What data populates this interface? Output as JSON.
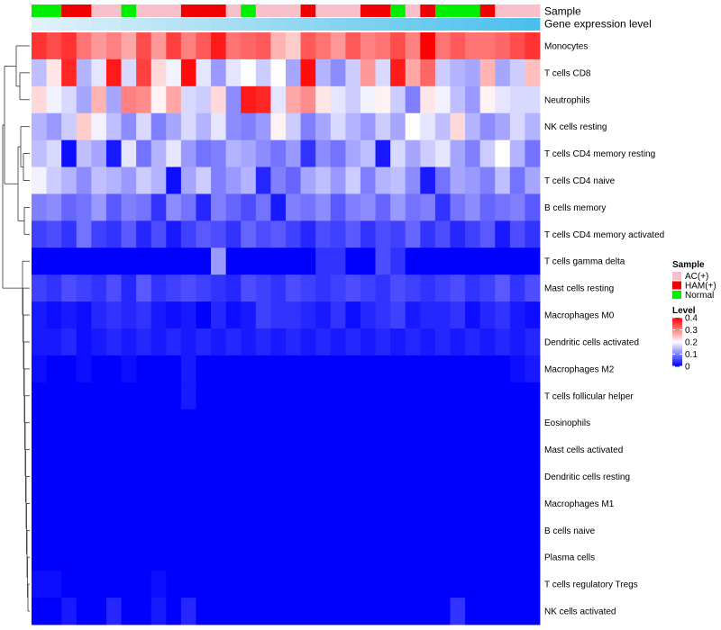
{
  "chart_data": {
    "type": "heatmap",
    "title": "",
    "xlabel": "",
    "ylabel": "",
    "column_annotation_labels": [
      "Sample",
      "Gene expression level"
    ],
    "sample_groups": [
      "AC(+)",
      "HAM(+)",
      "Normal"
    ],
    "sample_colors": {
      "AC(+)": "#f7c0cb",
      "HAM(+)": "#f00000",
      "Normal": "#00ee00"
    },
    "samples": [
      "Normal",
      "Normal",
      "HAM(+)",
      "HAM(+)",
      "AC(+)",
      "AC(+)",
      "Normal",
      "AC(+)",
      "AC(+)",
      "AC(+)",
      "HAM(+)",
      "HAM(+)",
      "HAM(+)",
      "AC(+)",
      "Normal",
      "AC(+)",
      "AC(+)",
      "AC(+)",
      "HAM(+)",
      "AC(+)",
      "AC(+)",
      "AC(+)",
      "HAM(+)",
      "HAM(+)",
      "Normal",
      "AC(+)",
      "HAM(+)",
      "Normal",
      "Normal",
      "Normal",
      "HAM(+)",
      "AC(+)",
      "AC(+)",
      "AC(+)"
    ],
    "gene_expression_bar": {
      "low_color": "#dff1f9",
      "high_color": "#4bc0ec"
    },
    "value_range": [
      0,
      0.4
    ],
    "color_scale": {
      "low": "#0000ff",
      "mid": "#ffffff",
      "high": "#ff0000",
      "midpoint": 0.2
    },
    "rows": [
      {
        "name": "Monocytes",
        "values": [
          0.36,
          0.34,
          0.36,
          0.31,
          0.28,
          0.3,
          0.27,
          0.34,
          0.28,
          0.35,
          0.3,
          0.33,
          0.38,
          0.31,
          0.32,
          0.33,
          0.26,
          0.24,
          0.33,
          0.31,
          0.28,
          0.33,
          0.3,
          0.31,
          0.34,
          0.3,
          0.4,
          0.31,
          0.33,
          0.31,
          0.31,
          0.32,
          0.34,
          0.36
        ]
      },
      {
        "name": "T cells CD8",
        "values": [
          0.15,
          0.22,
          0.37,
          0.14,
          0.18,
          0.38,
          0.17,
          0.35,
          0.23,
          0.19,
          0.39,
          0.18,
          0.12,
          0.18,
          0.2,
          0.16,
          0.2,
          0.13,
          0.39,
          0.14,
          0.11,
          0.16,
          0.28,
          0.17,
          0.38,
          0.27,
          0.32,
          0.16,
          0.14,
          0.13,
          0.26,
          0.13,
          0.16,
          0.25
        ]
      },
      {
        "name": "Neutrophils",
        "values": [
          0.23,
          0.19,
          0.17,
          0.13,
          0.26,
          0.13,
          0.3,
          0.29,
          0.21,
          0.27,
          0.17,
          0.16,
          0.23,
          0.11,
          0.38,
          0.37,
          0.18,
          0.27,
          0.29,
          0.22,
          0.18,
          0.16,
          0.19,
          0.21,
          0.16,
          0.1,
          0.22,
          0.19,
          0.15,
          0.12,
          0.21,
          0.18,
          0.17,
          0.17
        ]
      },
      {
        "name": "NK cells resting",
        "values": [
          0.14,
          0.12,
          0.16,
          0.24,
          0.19,
          0.15,
          0.11,
          0.17,
          0.1,
          0.13,
          0.17,
          0.14,
          0.18,
          0.11,
          0.1,
          0.12,
          0.21,
          0.16,
          0.1,
          0.13,
          0.17,
          0.14,
          0.12,
          0.16,
          0.13,
          0.2,
          0.18,
          0.15,
          0.23,
          0.14,
          0.11,
          0.13,
          0.17,
          0.14
        ]
      },
      {
        "name": "T cells CD4 memory resting",
        "values": [
          0.15,
          0.17,
          0.01,
          0.15,
          0.13,
          0.02,
          0.18,
          0.09,
          0.14,
          0.18,
          0.12,
          0.09,
          0.1,
          0.14,
          0.13,
          0.11,
          0.09,
          0.12,
          0.04,
          0.11,
          0.09,
          0.13,
          0.15,
          0.02,
          0.17,
          0.13,
          0.16,
          0.18,
          0.13,
          0.1,
          0.16,
          0.2,
          0.14,
          0.09
        ]
      },
      {
        "name": "T cells CD4 naive",
        "values": [
          0.19,
          0.16,
          0.14,
          0.11,
          0.15,
          0.14,
          0.12,
          0.16,
          0.14,
          0.01,
          0.13,
          0.16,
          0.1,
          0.12,
          0.14,
          0.03,
          0.1,
          0.08,
          0.13,
          0.15,
          0.12,
          0.16,
          0.1,
          0.14,
          0.15,
          0.11,
          0.02,
          0.09,
          0.13,
          0.12,
          0.1,
          0.15,
          0.09,
          0.13
        ]
      },
      {
        "name": "B cells memory",
        "values": [
          0.1,
          0.11,
          0.08,
          0.09,
          0.12,
          0.07,
          0.1,
          0.09,
          0.04,
          0.11,
          0.09,
          0.03,
          0.1,
          0.08,
          0.06,
          0.09,
          0.02,
          0.1,
          0.09,
          0.11,
          0.07,
          0.1,
          0.11,
          0.08,
          0.12,
          0.09,
          0.1,
          0.04,
          0.09,
          0.11,
          0.08,
          0.09,
          0.1,
          0.07
        ]
      },
      {
        "name": "T cells CD4 memory activated",
        "values": [
          0.05,
          0.06,
          0.04,
          0.09,
          0.05,
          0.04,
          0.07,
          0.03,
          0.06,
          0.02,
          0.05,
          0.07,
          0.06,
          0.04,
          0.08,
          0.06,
          0.07,
          0.05,
          0.03,
          0.06,
          0.05,
          0.07,
          0.04,
          0.06,
          0.05,
          0.08,
          0.04,
          0.06,
          0.03,
          0.05,
          0.07,
          0.02,
          0.06,
          0.04
        ]
      },
      {
        "name": "T cells gamma delta",
        "values": [
          0.0,
          0.0,
          0.0,
          0.0,
          0.0,
          0.0,
          0.0,
          0.0,
          0.0,
          0.0,
          0.0,
          0.0,
          0.12,
          0.0,
          0.0,
          0.0,
          0.0,
          0.0,
          0.0,
          0.04,
          0.04,
          0.0,
          0.0,
          0.06,
          0.04,
          0.0,
          0.0,
          0.0,
          0.0,
          0.0,
          0.0,
          0.0,
          0.0,
          0.0
        ]
      },
      {
        "name": "Mast cells resting",
        "values": [
          0.05,
          0.04,
          0.06,
          0.05,
          0.04,
          0.06,
          0.03,
          0.07,
          0.04,
          0.05,
          0.06,
          0.05,
          0.04,
          0.03,
          0.06,
          0.05,
          0.04,
          0.06,
          0.05,
          0.04,
          0.05,
          0.06,
          0.05,
          0.04,
          0.06,
          0.05,
          0.04,
          0.05,
          0.06,
          0.04,
          0.05,
          0.07,
          0.04,
          0.06
        ]
      },
      {
        "name": "Macrophages M0",
        "values": [
          0.02,
          0.01,
          0.02,
          0.01,
          0.03,
          0.04,
          0.03,
          0.04,
          0.02,
          0.01,
          0.02,
          0.0,
          0.03,
          0.01,
          0.02,
          0.05,
          0.04,
          0.04,
          0.03,
          0.02,
          0.04,
          0.01,
          0.03,
          0.04,
          0.05,
          0.02,
          0.03,
          0.03,
          0.04,
          0.01,
          0.03,
          0.04,
          0.02,
          0.01
        ]
      },
      {
        "name": "Dendritic cells activated",
        "values": [
          0.02,
          0.02,
          0.03,
          0.01,
          0.02,
          0.03,
          0.02,
          0.03,
          0.02,
          0.03,
          0.02,
          0.03,
          0.02,
          0.03,
          0.02,
          0.03,
          0.02,
          0.03,
          0.02,
          0.03,
          0.02,
          0.03,
          0.02,
          0.03,
          0.02,
          0.03,
          0.02,
          0.03,
          0.02,
          0.03,
          0.02,
          0.03,
          0.02,
          0.03
        ]
      },
      {
        "name": "Macrophages M2",
        "values": [
          0.01,
          0.0,
          0.0,
          0.01,
          0.0,
          0.0,
          0.01,
          0.0,
          0.0,
          0.0,
          0.02,
          0.0,
          0.0,
          0.0,
          0.0,
          0.0,
          0.0,
          0.0,
          0.0,
          0.0,
          0.0,
          0.0,
          0.0,
          0.0,
          0.0,
          0.0,
          0.0,
          0.0,
          0.0,
          0.0,
          0.0,
          0.0,
          0.01,
          0.02
        ]
      },
      {
        "name": "T cells follicular helper",
        "values": [
          0.0,
          0.0,
          0.0,
          0.0,
          0.0,
          0.0,
          0.0,
          0.0,
          0.0,
          0.0,
          0.02,
          0.0,
          0.0,
          0.0,
          0.0,
          0.0,
          0.0,
          0.0,
          0.0,
          0.0,
          0.0,
          0.0,
          0.0,
          0.0,
          0.0,
          0.0,
          0.0,
          0.0,
          0.0,
          0.0,
          0.0,
          0.0,
          0.0,
          0.0
        ]
      },
      {
        "name": "Eosinophils",
        "values": [
          0.0,
          0.0,
          0.0,
          0.0,
          0.0,
          0.0,
          0.0,
          0.0,
          0.0,
          0.0,
          0.0,
          0.0,
          0.0,
          0.0,
          0.0,
          0.0,
          0.0,
          0.0,
          0.0,
          0.0,
          0.0,
          0.0,
          0.0,
          0.0,
          0.0,
          0.0,
          0.0,
          0.0,
          0.0,
          0.0,
          0.0,
          0.0,
          0.0,
          0.0
        ]
      },
      {
        "name": "Mast cells activated",
        "values": [
          0.0,
          0.0,
          0.0,
          0.0,
          0.0,
          0.0,
          0.0,
          0.0,
          0.0,
          0.0,
          0.0,
          0.0,
          0.0,
          0.0,
          0.0,
          0.0,
          0.0,
          0.0,
          0.0,
          0.0,
          0.0,
          0.0,
          0.0,
          0.0,
          0.0,
          0.0,
          0.0,
          0.0,
          0.0,
          0.0,
          0.0,
          0.0,
          0.0,
          0.0
        ]
      },
      {
        "name": "Dendritic cells resting",
        "values": [
          0.0,
          0.0,
          0.0,
          0.0,
          0.0,
          0.0,
          0.0,
          0.0,
          0.0,
          0.0,
          0.0,
          0.0,
          0.0,
          0.0,
          0.0,
          0.0,
          0.0,
          0.0,
          0.0,
          0.0,
          0.0,
          0.0,
          0.0,
          0.0,
          0.0,
          0.0,
          0.0,
          0.0,
          0.0,
          0.0,
          0.0,
          0.0,
          0.0,
          0.0
        ]
      },
      {
        "name": "Macrophages M1",
        "values": [
          0.0,
          0.0,
          0.0,
          0.0,
          0.0,
          0.0,
          0.0,
          0.0,
          0.0,
          0.0,
          0.0,
          0.0,
          0.0,
          0.0,
          0.0,
          0.0,
          0.0,
          0.0,
          0.0,
          0.0,
          0.0,
          0.0,
          0.0,
          0.0,
          0.0,
          0.0,
          0.0,
          0.0,
          0.0,
          0.0,
          0.0,
          0.0,
          0.0,
          0.0
        ]
      },
      {
        "name": "B cells naive",
        "values": [
          0.0,
          0.0,
          0.0,
          0.0,
          0.0,
          0.0,
          0.0,
          0.0,
          0.0,
          0.0,
          0.0,
          0.0,
          0.0,
          0.0,
          0.0,
          0.0,
          0.0,
          0.0,
          0.0,
          0.0,
          0.0,
          0.0,
          0.0,
          0.0,
          0.0,
          0.0,
          0.0,
          0.0,
          0.0,
          0.0,
          0.0,
          0.0,
          0.0,
          0.0
        ]
      },
      {
        "name": "Plasma cells",
        "values": [
          0.0,
          0.0,
          0.0,
          0.0,
          0.0,
          0.0,
          0.0,
          0.0,
          0.0,
          0.0,
          0.0,
          0.0,
          0.0,
          0.0,
          0.0,
          0.0,
          0.0,
          0.0,
          0.0,
          0.0,
          0.0,
          0.0,
          0.0,
          0.0,
          0.0,
          0.0,
          0.0,
          0.0,
          0.0,
          0.0,
          0.0,
          0.0,
          0.0,
          0.0
        ]
      },
      {
        "name": "T cells regulatory  Tregs",
        "values": [
          0.01,
          0.01,
          0.0,
          0.0,
          0.0,
          0.0,
          0.0,
          0.0,
          0.01,
          0.0,
          0.0,
          0.0,
          0.0,
          0.0,
          0.0,
          0.0,
          0.0,
          0.0,
          0.0,
          0.0,
          0.0,
          0.0,
          0.0,
          0.0,
          0.0,
          0.0,
          0.0,
          0.0,
          0.0,
          0.0,
          0.0,
          0.0,
          0.0,
          0.0
        ]
      },
      {
        "name": "NK cells activated",
        "values": [
          0.0,
          0.0,
          0.02,
          0.0,
          0.0,
          0.03,
          0.0,
          0.0,
          0.02,
          0.0,
          0.03,
          0.0,
          0.0,
          0.0,
          0.0,
          0.0,
          0.0,
          0.0,
          0.0,
          0.0,
          0.0,
          0.0,
          0.0,
          0.0,
          0.0,
          0.0,
          0.0,
          0.0,
          0.04,
          0.0,
          0.0,
          0.0,
          0.0,
          0.0
        ]
      }
    ],
    "legend": {
      "sample_title": "Sample",
      "sample_entries": [
        "AC(+)",
        "HAM(+)",
        "Normal"
      ],
      "level_title": "Level",
      "level_ticks": [
        0.4,
        0.3,
        0.2,
        0.1,
        0
      ],
      "level_tick_labels": [
        "0.4",
        "0.3",
        "0.2",
        "0.1",
        "0"
      ],
      "placement": "right"
    }
  }
}
